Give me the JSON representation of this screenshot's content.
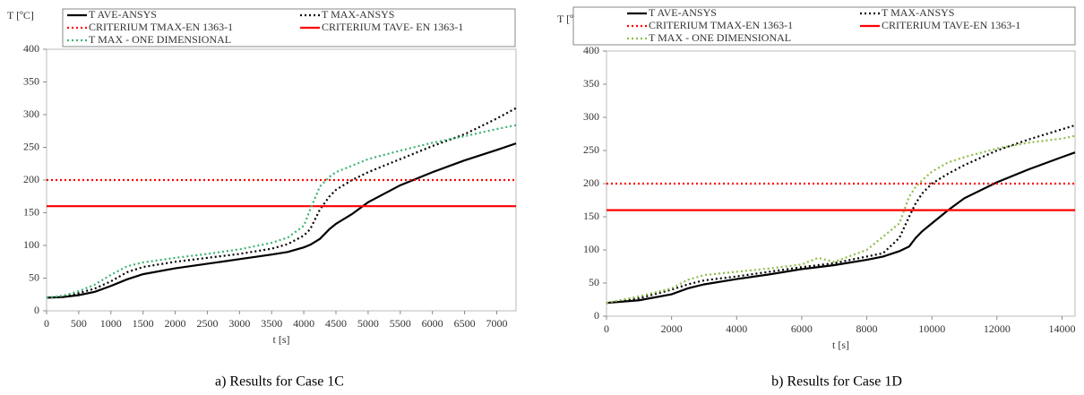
{
  "chart_data": [
    {
      "type": "line",
      "caption": "a) Results for Case 1C",
      "y_label": "T [ºC]",
      "x_label": "t [s]",
      "x": [
        0,
        250,
        500,
        750,
        1000,
        1250,
        1500,
        2000,
        2500,
        3000,
        3500,
        3750,
        4000,
        4100,
        4250,
        4400,
        4500,
        4750,
        5000,
        5500,
        6000,
        6500,
        7000,
        7300
      ],
      "xlim": [
        0,
        7300
      ],
      "xticks": [
        0,
        500,
        1000,
        1500,
        2000,
        2500,
        3000,
        3500,
        4000,
        4500,
        5000,
        5500,
        6000,
        6500,
        7000
      ],
      "ylim": [
        0,
        400
      ],
      "yticks": [
        0,
        50,
        100,
        150,
        200,
        250,
        300,
        350,
        400
      ],
      "series": [
        {
          "name": "T AVE-ANSYS",
          "color": "#000000",
          "dash": "solid",
          "values": [
            20,
            21,
            24,
            29,
            38,
            48,
            56,
            65,
            72,
            79,
            86,
            90,
            97,
            101,
            110,
            125,
            133,
            148,
            166,
            192,
            212,
            230,
            246,
            256
          ]
        },
        {
          "name": "T MAX-ANSYS",
          "color": "#000000",
          "dash": "dotted",
          "values": [
            20,
            22,
            27,
            34,
            45,
            59,
            67,
            75,
            81,
            87,
            95,
            102,
            115,
            125,
            155,
            175,
            185,
            200,
            212,
            232,
            252,
            270,
            294,
            310
          ]
        },
        {
          "name": "CRITERIUM TMAX-EN 1363-1",
          "color": "#ff0000",
          "dash": "dotted",
          "value": 200
        },
        {
          "name": "CRITERIUM TAVE- EN 1363-1",
          "color": "#ff0000",
          "dash": "solid",
          "value": 160
        },
        {
          "name": "T MAX - ONE DIMENSIONAL",
          "color": "#3cb371",
          "dash": "dotted",
          "values": [
            20,
            23,
            30,
            40,
            55,
            68,
            74,
            81,
            87,
            94,
            104,
            112,
            130,
            155,
            190,
            205,
            212,
            222,
            232,
            245,
            257,
            267,
            278,
            284
          ]
        }
      ]
    },
    {
      "type": "line",
      "caption": "b) Results for Case 1D",
      "y_label": "T [ºC]",
      "x_label": "t [s]",
      "x": [
        0,
        1000,
        2000,
        2500,
        3000,
        4000,
        5000,
        6000,
        6500,
        7000,
        8000,
        8500,
        9000,
        9300,
        9500,
        9700,
        10000,
        10500,
        11000,
        12000,
        13000,
        14000,
        14400
      ],
      "xlim": [
        0,
        14400
      ],
      "xticks": [
        0,
        2000,
        4000,
        6000,
        8000,
        10000,
        12000,
        14000
      ],
      "ylim": [
        0,
        400
      ],
      "yticks": [
        0,
        50,
        100,
        150,
        200,
        250,
        300,
        350,
        400
      ],
      "series": [
        {
          "name": "T AVE-ANSYS",
          "color": "#000000",
          "dash": "solid",
          "values": [
            20,
            24,
            33,
            42,
            48,
            56,
            63,
            71,
            74,
            77,
            85,
            90,
            98,
            105,
            118,
            128,
            140,
            160,
            178,
            202,
            222,
            240,
            247
          ]
        },
        {
          "name": "T MAX-ANSYS",
          "color": "#000000",
          "dash": "dotted",
          "values": [
            20,
            27,
            40,
            48,
            54,
            60,
            67,
            74,
            77,
            80,
            90,
            95,
            118,
            150,
            170,
            185,
            200,
            215,
            228,
            250,
            267,
            282,
            288
          ]
        },
        {
          "name": "CRITERIUM TMAX-EN 1363-1",
          "color": "#ff0000",
          "dash": "dotted",
          "value": 200
        },
        {
          "name": "CRITERIUM TAVE-EN 1363-1",
          "color": "#ff0000",
          "dash": "solid",
          "value": 160
        },
        {
          "name": "T MAX - ONE DIMENSIONAL",
          "color": "#8fbc4a",
          "dash": "dotted",
          "values": [
            20,
            30,
            42,
            55,
            62,
            67,
            72,
            78,
            88,
            82,
            100,
            120,
            140,
            180,
            195,
            205,
            218,
            232,
            240,
            253,
            262,
            268,
            272
          ]
        }
      ]
    }
  ]
}
